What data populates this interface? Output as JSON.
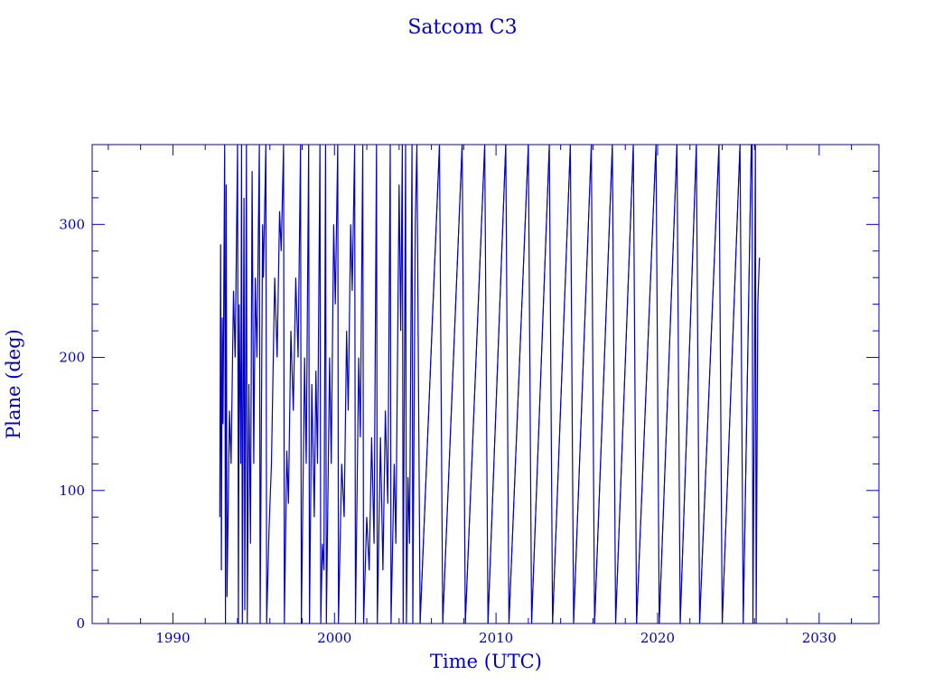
{
  "chart_data": {
    "type": "line",
    "title": "Satcom C3",
    "xlabel": "Time (UTC)",
    "ylabel": "Plane (deg)",
    "xlim": [
      1985.0,
      2033.7
    ],
    "ylim": [
      0,
      360
    ],
    "x_ticks": [
      1990,
      2000,
      2010,
      2020,
      2030
    ],
    "x_tick_labels": [
      "1990",
      "2000",
      "2010",
      "2020",
      "2030"
    ],
    "y_ticks": [
      0,
      100,
      200,
      300
    ],
    "y_tick_labels": [
      "0",
      "100",
      "200",
      "300"
    ],
    "grid": false,
    "color": "#0000c8",
    "series": [
      {
        "wraps": [
          {
            "x0": 2005.3,
            "x1": 2006.5
          },
          {
            "x0": 2006.7,
            "x1": 2007.9
          },
          {
            "x0": 2008.1,
            "x1": 2009.3
          },
          {
            "x0": 2009.5,
            "x1": 2010.6
          },
          {
            "x0": 2010.8,
            "x1": 2012.0
          },
          {
            "x0": 2012.2,
            "x1": 2013.3
          },
          {
            "x0": 2013.5,
            "x1": 2014.6
          },
          {
            "x0": 2014.8,
            "x1": 2015.9
          },
          {
            "x0": 2016.1,
            "x1": 2017.2
          },
          {
            "x0": 2017.4,
            "x1": 2018.5
          },
          {
            "x0": 2018.7,
            "x1": 2019.9
          },
          {
            "x0": 2020.1,
            "x1": 2021.2
          },
          {
            "x0": 2021.4,
            "x1": 2022.4
          },
          {
            "x0": 2022.6,
            "x1": 2023.8
          },
          {
            "x0": 2024.0,
            "x1": 2025.1
          },
          {
            "x0": 2025.3,
            "x1": 2025.8
          }
        ],
        "erratic": [
          [
            1992.9,
            80
          ],
          [
            1992.95,
            285
          ],
          [
            1993.0,
            40
          ],
          [
            1993.05,
            230
          ],
          [
            1993.1,
            150
          ],
          [
            1993.2,
            360
          ],
          [
            1993.25,
            0
          ],
          [
            1993.3,
            330
          ],
          [
            1993.35,
            20
          ],
          [
            1993.5,
            160
          ],
          [
            1993.6,
            120
          ],
          [
            1993.75,
            250
          ],
          [
            1993.85,
            200
          ],
          [
            1994.0,
            360
          ],
          [
            1994.05,
            0
          ],
          [
            1994.1,
            240
          ],
          [
            1994.2,
            120
          ],
          [
            1994.25,
            360
          ],
          [
            1994.3,
            0
          ],
          [
            1994.4,
            320
          ],
          [
            1994.45,
            10
          ],
          [
            1994.55,
            360
          ],
          [
            1994.6,
            0
          ],
          [
            1994.7,
            180
          ],
          [
            1994.8,
            60
          ],
          [
            1994.9,
            340
          ],
          [
            1995.0,
            120
          ],
          [
            1995.1,
            260
          ],
          [
            1995.2,
            200
          ],
          [
            1995.35,
            360
          ],
          [
            1995.4,
            0
          ],
          [
            1995.55,
            300
          ],
          [
            1995.6,
            260
          ],
          [
            1995.75,
            360
          ],
          [
            1995.8,
            0
          ],
          [
            1995.95,
            70
          ],
          [
            1996.1,
            120
          ],
          [
            1996.3,
            260
          ],
          [
            1996.45,
            200
          ],
          [
            1996.6,
            310
          ],
          [
            1996.7,
            280
          ],
          [
            1996.85,
            360
          ],
          [
            1996.9,
            0
          ],
          [
            1997.05,
            130
          ],
          [
            1997.15,
            90
          ],
          [
            1997.3,
            220
          ],
          [
            1997.45,
            160
          ],
          [
            1997.6,
            260
          ],
          [
            1997.75,
            200
          ],
          [
            1997.9,
            360
          ],
          [
            1997.95,
            0
          ],
          [
            1998.15,
            200
          ],
          [
            1998.25,
            120
          ],
          [
            1998.4,
            360
          ],
          [
            1998.45,
            0
          ],
          [
            1998.6,
            180
          ],
          [
            1998.75,
            80
          ],
          [
            1998.85,
            190
          ],
          [
            1998.95,
            120
          ],
          [
            1999.1,
            360
          ],
          [
            1999.15,
            0
          ],
          [
            1999.25,
            60
          ],
          [
            1999.35,
            40
          ],
          [
            1999.45,
            360
          ],
          [
            1999.5,
            0
          ],
          [
            1999.7,
            200
          ],
          [
            1999.8,
            120
          ],
          [
            1999.95,
            300
          ],
          [
            2000.05,
            240
          ],
          [
            2000.2,
            360
          ],
          [
            2000.25,
            0
          ],
          [
            2000.45,
            120
          ],
          [
            2000.6,
            80
          ],
          [
            2000.75,
            220
          ],
          [
            2000.85,
            160
          ],
          [
            2001.0,
            300
          ],
          [
            2001.1,
            250
          ],
          [
            2001.25,
            360
          ],
          [
            2001.3,
            0
          ],
          [
            2001.5,
            200
          ],
          [
            2001.6,
            140
          ],
          [
            2001.75,
            360
          ],
          [
            2001.8,
            0
          ],
          [
            2002.0,
            80
          ],
          [
            2002.15,
            40
          ],
          [
            2002.3,
            140
          ],
          [
            2002.45,
            60
          ],
          [
            2002.6,
            360
          ],
          [
            2002.65,
            0
          ],
          [
            2002.85,
            140
          ],
          [
            2003.0,
            40
          ],
          [
            2003.15,
            160
          ],
          [
            2003.3,
            90
          ],
          [
            2003.45,
            360
          ],
          [
            2003.5,
            0
          ],
          [
            2003.7,
            120
          ],
          [
            2003.8,
            60
          ],
          [
            2004.0,
            330
          ],
          [
            2004.1,
            220
          ],
          [
            2004.2,
            360
          ],
          [
            2004.25,
            0
          ],
          [
            2004.4,
            360
          ],
          [
            2004.45,
            0
          ],
          [
            2004.55,
            110
          ],
          [
            2004.65,
            60
          ],
          [
            2004.8,
            360
          ],
          [
            2004.85,
            0
          ],
          [
            2005.0,
            300
          ],
          [
            2005.1,
            360
          ]
        ],
        "tail": [
          [
            2025.85,
            360
          ],
          [
            2025.9,
            0
          ],
          [
            2026.0,
            200
          ],
          [
            2026.05,
            360
          ],
          [
            2026.1,
            0
          ],
          [
            2026.2,
            240
          ],
          [
            2026.3,
            275
          ]
        ]
      }
    ]
  }
}
